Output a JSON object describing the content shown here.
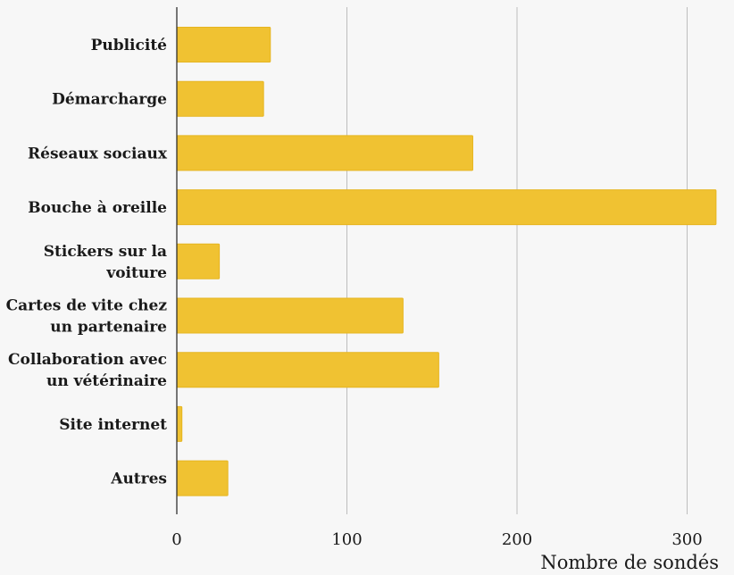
{
  "chart_data": {
    "type": "bar",
    "orientation": "horizontal",
    "title": "",
    "xlabel": "Nombre de sondés",
    "ylabel": "",
    "categories": [
      [
        "Publicité"
      ],
      [
        "Démarcharge"
      ],
      [
        "Réseaux sociaux"
      ],
      [
        "Bouche à oreille"
      ],
      [
        "Stickers sur la",
        "voiture"
      ],
      [
        "Cartes de vite chez",
        "un partenaire"
      ],
      [
        "Collaboration avec",
        "un vétérinaire"
      ],
      [
        "Site internet"
      ],
      [
        "Autres"
      ]
    ],
    "values": [
      55,
      51,
      174,
      317,
      25,
      133,
      154,
      3,
      30
    ],
    "xlim": [
      0,
      320
    ],
    "xticks": [
      0,
      100,
      200,
      300
    ],
    "grid": true,
    "legend": "none",
    "colors": {
      "bar": "#f0c232",
      "bar_edge": "#e6b520",
      "grid": "#bdbdbd",
      "axis": "#222222",
      "background": "#f7f7f7"
    }
  }
}
